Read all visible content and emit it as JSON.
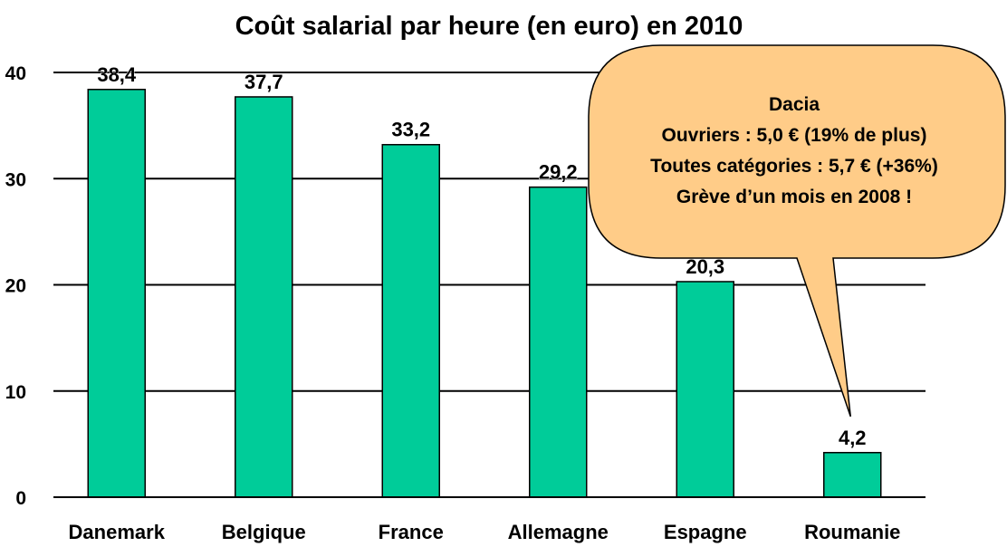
{
  "chart_data": {
    "type": "bar",
    "title": "Coût salarial par heure (en euro) en 2010",
    "categories": [
      "Danemark",
      "Belgique",
      "France",
      "Allemagne",
      "Espagne",
      "Roumanie"
    ],
    "values": [
      38.4,
      37.7,
      33.2,
      29.2,
      20.3,
      4.2
    ],
    "value_labels": [
      "38,4",
      "37,7",
      "33,2",
      "29,2",
      "20,3",
      "4,2"
    ],
    "ylim": [
      0,
      40
    ],
    "yticks": [
      0,
      10,
      20,
      30,
      40
    ],
    "grid": true,
    "bar_color": "#00CC99",
    "callout": {
      "lines": [
        "Dacia",
        "Ouvriers : 5,0 € (19% de plus)",
        "Toutes catégories : 5,7 € (+36%)",
        "Grève d’un mois en 2008 !"
      ],
      "fill_color": "#FFCC88",
      "points_to": "Roumanie"
    }
  }
}
